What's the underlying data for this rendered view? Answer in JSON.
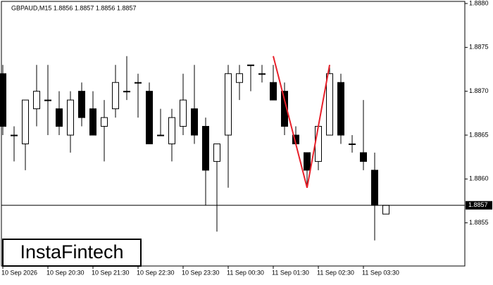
{
  "chart_data": {
    "type": "candlestick",
    "title": "GBPAUD,M15  1.8856 1.8857 1.8856 1.8857",
    "categories": [
      "10 Sep 2026",
      null,
      null,
      null,
      "10 Sep 20:30",
      null,
      null,
      null,
      "10 Sep 21:30",
      null,
      null,
      null,
      "10 Sep 22:30",
      null,
      null,
      null,
      "10 Sep 23:30",
      null,
      null,
      null,
      "11 Sep 00:30",
      null,
      null,
      null,
      "11 Sep 01:30",
      null,
      null,
      null,
      "11 Sep 02:30",
      null,
      null,
      null,
      "11 Sep 03:30",
      null,
      null
    ],
    "open": [
      1.8872,
      1.8865,
      1.8864,
      1.8868,
      1.8869,
      1.8868,
      1.8865,
      1.887,
      1.8868,
      1.8866,
      1.8868,
      1.887,
      1.8871,
      1.887,
      1.8865,
      1.8864,
      1.8866,
      1.8868,
      1.8866,
      1.8862,
      1.8865,
      1.8871,
      1.8873,
      1.8872,
      1.8871,
      1.887,
      1.8865,
      1.8863,
      1.8862,
      1.8865,
      1.8871,
      1.8864,
      1.8863,
      1.8861,
      1.8856
    ],
    "high": [
      1.8873,
      1.8866,
      1.8869,
      1.8873,
      1.8873,
      1.887,
      1.887,
      1.8871,
      1.887,
      1.8869,
      1.8873,
      1.8874,
      1.8872,
      1.8871,
      1.8868,
      1.8868,
      1.8872,
      1.8873,
      1.8867,
      1.8864,
      1.8873,
      1.8873,
      1.8873,
      1.8873,
      1.8873,
      1.8871,
      1.8866,
      1.8863,
      1.8866,
      1.8873,
      1.8872,
      1.8865,
      1.8869,
      1.8863,
      1.8857
    ],
    "low": [
      1.8865,
      1.8862,
      1.8861,
      1.8866,
      1.8865,
      1.8865,
      1.8863,
      1.8866,
      1.8865,
      1.8862,
      1.8867,
      1.8869,
      1.8867,
      1.8864,
      1.8865,
      1.8862,
      1.8865,
      1.8864,
      1.8857,
      1.8854,
      1.8859,
      1.8869,
      1.887,
      1.8871,
      1.8869,
      1.8865,
      1.8864,
      1.8859,
      1.8861,
      1.8865,
      1.8864,
      1.8863,
      1.8861,
      1.8853,
      1.8856
    ],
    "close": [
      1.8866,
      1.8865,
      1.8869,
      1.887,
      1.8869,
      1.8866,
      1.8869,
      1.8867,
      1.8865,
      1.8867,
      1.8871,
      1.887,
      1.8871,
      1.8864,
      1.8865,
      1.8867,
      1.8869,
      1.8865,
      1.8861,
      1.8864,
      1.8872,
      1.8872,
      1.8873,
      1.8872,
      1.8869,
      1.8866,
      1.8864,
      1.8861,
      1.8866,
      1.8872,
      1.8865,
      1.8864,
      1.8862,
      1.8857,
      1.8857
    ],
    "up_color": "#ffffff",
    "down_color": "#000000",
    "ylim": [
      1.885,
      1.888
    ],
    "yticks": [
      1.8855,
      {
        "value": 1.886,
        "label": "1.8860"
      },
      1.8865,
      {
        "value": 1.887,
        "label": "1.8870"
      },
      1.8875,
      {
        "value": 1.888,
        "label": "1.8880"
      }
    ],
    "current_price": 1.8857,
    "pattern": {
      "color": "#e8202a",
      "x": [
        24,
        27,
        29
      ],
      "values": [
        1.8874,
        1.8859,
        1.8873
      ]
    },
    "watermark": "InstaFintech"
  }
}
